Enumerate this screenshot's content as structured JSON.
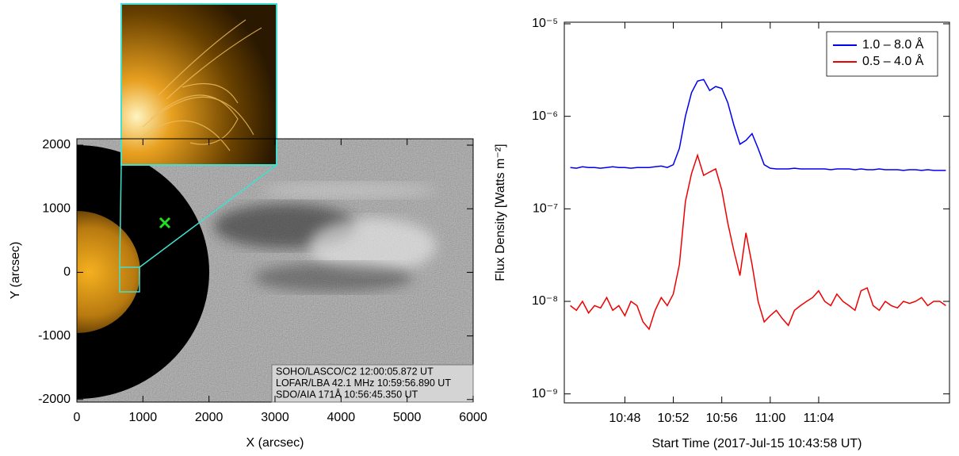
{
  "chart_data": [
    {
      "type": "image",
      "xlabel": "X (arcsec)",
      "ylabel": "Y (arcsec)",
      "xlim": [
        0,
        6000
      ],
      "ylim": [
        -2040,
        2100
      ],
      "xticks": [
        0,
        1000,
        2000,
        3000,
        4000,
        5000,
        6000
      ],
      "yticks": [
        -2000,
        -1000,
        0,
        1000,
        2000
      ],
      "annotations": [
        "SOHO/LASCO/C2 12:00:05.872 UT",
        "LOFAR/LBA 42.1 MHz 10:59:56.890 UT",
        "SDO/AIA 171Å 10:56:45.350 UT"
      ]
    },
    {
      "type": "line",
      "xlabel": "Start Time (2017-Jul-15 10:43:58 UT)",
      "ylabel": "Flux Density [Watts m⁻²]",
      "log_y": true,
      "legend": "upper right",
      "xlim": [
        43,
        74.8
      ],
      "ylim": [
        8e-10,
        1.04e-05
      ],
      "xticks": [
        {
          "value": 48,
          "label": "10:48"
        },
        {
          "value": 52,
          "label": "10:52"
        },
        {
          "value": 56,
          "label": "10:56"
        },
        {
          "value": 60,
          "label": "11:00"
        },
        {
          "value": 64,
          "label": "11:04"
        }
      ],
      "yticks": [
        {
          "value": 1e-09,
          "label": "10⁻⁹"
        },
        {
          "value": 1e-08,
          "label": "10⁻⁸"
        },
        {
          "value": 1e-07,
          "label": "10⁻⁷"
        },
        {
          "value": 1e-06,
          "label": "10⁻⁶"
        },
        {
          "value": 1e-05,
          "label": "10⁻⁵"
        }
      ],
      "x": [
        43.5,
        44,
        44.5,
        45,
        45.5,
        46,
        46.5,
        47,
        47.5,
        48,
        48.5,
        49,
        49.5,
        50,
        50.5,
        51,
        51.5,
        52,
        52.5,
        53,
        53.5,
        54,
        54.5,
        55,
        55.5,
        56,
        56.5,
        57,
        57.5,
        58,
        58.5,
        59,
        59.5,
        60,
        60.5,
        61,
        61.5,
        62,
        62.5,
        63,
        63.5,
        64,
        64.5,
        65,
        65.5,
        66,
        66.5,
        67,
        67.5,
        68,
        68.5,
        69,
        69.5,
        70,
        70.5,
        71,
        71.5,
        72,
        72.5,
        73,
        73.5,
        74,
        74.5
      ],
      "series": [
        {
          "name": "1.0 – 8.0 Å",
          "color": "#0000ee",
          "values": [
            2.8e-07,
            2.75e-07,
            2.85e-07,
            2.8e-07,
            2.8e-07,
            2.75e-07,
            2.8e-07,
            2.85e-07,
            2.8e-07,
            2.8e-07,
            2.75e-07,
            2.8e-07,
            2.8e-07,
            2.8e-07,
            2.85e-07,
            2.9e-07,
            2.8e-07,
            3e-07,
            4.5e-07,
            1e-06,
            1.8e-06,
            2.4e-06,
            2.5e-06,
            1.9e-06,
            2.1e-06,
            2e-06,
            1.4e-06,
            8e-07,
            5e-07,
            5.5e-07,
            6.5e-07,
            4.5e-07,
            3e-07,
            2.75e-07,
            2.7e-07,
            2.7e-07,
            2.7e-07,
            2.75e-07,
            2.7e-07,
            2.7e-07,
            2.7e-07,
            2.7e-07,
            2.7e-07,
            2.65e-07,
            2.7e-07,
            2.7e-07,
            2.7e-07,
            2.65e-07,
            2.7e-07,
            2.65e-07,
            2.65e-07,
            2.7e-07,
            2.65e-07,
            2.65e-07,
            2.65e-07,
            2.6e-07,
            2.65e-07,
            2.65e-07,
            2.6e-07,
            2.65e-07,
            2.6e-07,
            2.6e-07,
            2.6e-07
          ]
        },
        {
          "name": "0.5 – 4.0 Å",
          "color": "#ee0000",
          "values": [
            9e-09,
            8e-09,
            1e-08,
            7.5e-09,
            9e-09,
            8.5e-09,
            1.1e-08,
            8e-09,
            9e-09,
            7e-09,
            1e-08,
            9e-09,
            6e-09,
            5e-09,
            8e-09,
            1.1e-08,
            9e-09,
            1.2e-08,
            2.5e-08,
            1.2e-07,
            2.4e-07,
            3.8e-07,
            2.3e-07,
            2.5e-07,
            2.7e-07,
            1.6e-07,
            7e-08,
            3.5e-08,
            1.9e-08,
            5.5e-08,
            2.5e-08,
            1e-08,
            6e-09,
            7e-09,
            8e-09,
            6.5e-09,
            5.5e-09,
            8e-09,
            9e-09,
            1e-08,
            1.1e-08,
            1.3e-08,
            1e-08,
            9e-09,
            1.2e-08,
            1e-08,
            9e-09,
            8e-09,
            1.3e-08,
            1.4e-08,
            9e-09,
            8e-09,
            1e-08,
            9e-09,
            8.5e-09,
            1e-08,
            9.5e-09,
            1e-08,
            1.1e-08,
            9e-09,
            1e-08,
            1e-08,
            9e-09
          ]
        }
      ]
    }
  ]
}
